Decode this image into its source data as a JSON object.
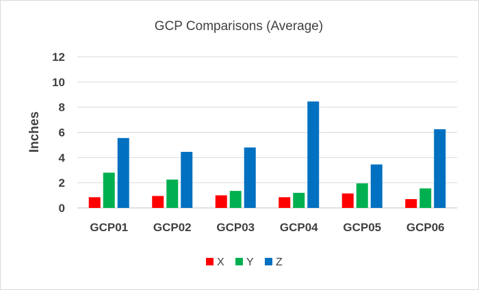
{
  "chart_data": {
    "type": "bar",
    "title": "GCP Comparisons (Average)",
    "ylabel": "Inches",
    "xlabel": "",
    "ylim": [
      0,
      12
    ],
    "yticks": [
      0,
      2,
      4,
      6,
      8,
      10,
      12
    ],
    "grid": true,
    "legend_position": "bottom",
    "categories": [
      "GCP01",
      "GCP02",
      "GCP03",
      "GCP04",
      "GCP05",
      "GCP06"
    ],
    "series": [
      {
        "name": "X",
        "color": "#ff0000",
        "values": [
          0.85,
          0.95,
          1.0,
          0.85,
          1.15,
          0.7
        ]
      },
      {
        "name": "Y",
        "color": "#00b050",
        "values": [
          2.8,
          2.25,
          1.35,
          1.2,
          1.95,
          1.55
        ]
      },
      {
        "name": "Z",
        "color": "#0070c0",
        "values": [
          5.55,
          4.45,
          4.8,
          8.45,
          3.45,
          6.25
        ]
      }
    ]
  }
}
